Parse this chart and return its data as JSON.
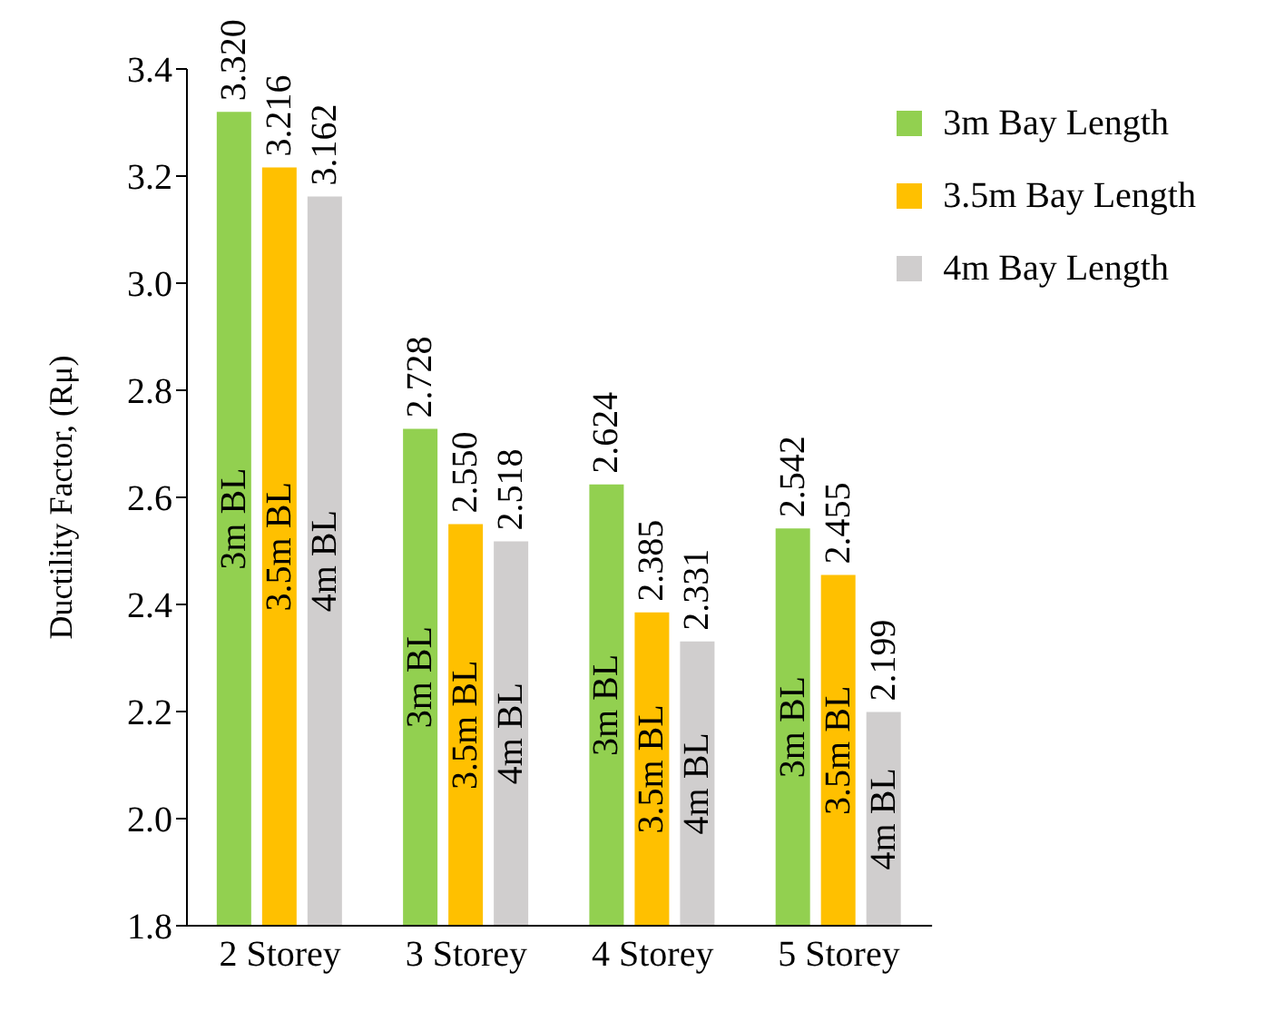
{
  "chart_data": {
    "type": "bar",
    "ylabel": "Ductility Factor, (Rμ)",
    "categories": [
      "2 Storey",
      "3 Storey",
      "4 Storey",
      "5 Storey"
    ],
    "series": [
      {
        "name": "3m Bay Length",
        "color": "#92d050",
        "values": [
          3.32,
          2.728,
          2.624,
          2.542
        ],
        "value_labels": [
          "3.320",
          "2.728",
          "2.624",
          "2.542"
        ]
      },
      {
        "name": "3.5m Bay Length",
        "color": "#ffc000",
        "values": [
          3.216,
          2.55,
          2.385,
          2.455
        ],
        "value_labels": [
          "3.216",
          "2.550",
          "2.385",
          "2.455"
        ]
      },
      {
        "name": "4m Bay Length",
        "color": "#d0cece",
        "values": [
          3.162,
          2.518,
          2.331,
          2.199
        ],
        "value_labels": [
          "3.162",
          "2.518",
          "2.331",
          "2.199"
        ]
      }
    ],
    "annotations": [
      "3m BL",
      "3.5m BL",
      "4m BL",
      "3m BL",
      "3.5m BL",
      "4m BL",
      "3m BL",
      "3.5m BL",
      "4m BL",
      "3m BL",
      "3.5m BL",
      "4m BL"
    ],
    "ylim": [
      1.8,
      3.4
    ],
    "yticks": [
      {
        "value": 1.8,
        "label": "1.8"
      },
      {
        "value": 2,
        "label": "2.0"
      },
      {
        "value": 2.2,
        "label": "2.2"
      },
      {
        "value": 2.4,
        "label": "2.4"
      },
      {
        "value": 2.6,
        "label": "2.6"
      },
      {
        "value": 2.8,
        "label": "2.8"
      },
      {
        "value": 3,
        "label": "3.0"
      },
      {
        "value": 3.2,
        "label": "3.2"
      },
      {
        "value": 3.4,
        "label": "3.4"
      }
    ],
    "grid": false,
    "legend": "top right"
  }
}
